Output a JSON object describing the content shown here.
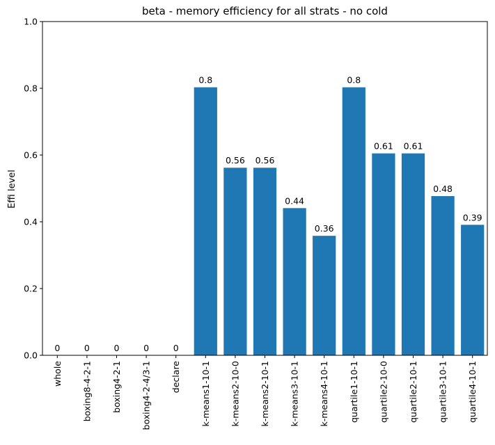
{
  "chart_data": {
    "type": "bar",
    "title": "beta - memory efficiency for all strats - no cold",
    "xlabel": "",
    "ylabel": "Effi level",
    "ylim": [
      0,
      1.0
    ],
    "yticks": [
      "0.0",
      "0.2",
      "0.4",
      "0.6",
      "0.8",
      "1.0"
    ],
    "categories": [
      "whole",
      "boxing8-4-2-1",
      "boxing4-2-1",
      "boxing4-2-4/3-1",
      "declare",
      "k-means1-10-1",
      "k-means2-10-0",
      "k-means2-10-1",
      "k-means3-10-1",
      "k-means4-10-1",
      "quartile1-10-1",
      "quartile2-10-0",
      "quartile2-10-1",
      "quartile3-10-1",
      "quartile4-10-1"
    ],
    "values": [
      0,
      0,
      0,
      0,
      0,
      0.803,
      0.562,
      0.562,
      0.441,
      0.358,
      0.803,
      0.605,
      0.605,
      0.477,
      0.391
    ],
    "data_labels": [
      "0",
      "0",
      "0",
      "0",
      "0",
      "0.8",
      "0.56",
      "0.56",
      "0.44",
      "0.36",
      "0.8",
      "0.61",
      "0.61",
      "0.48",
      "0.39"
    ],
    "bar_color": "#1f77b4",
    "grid": false,
    "legend": "none"
  }
}
